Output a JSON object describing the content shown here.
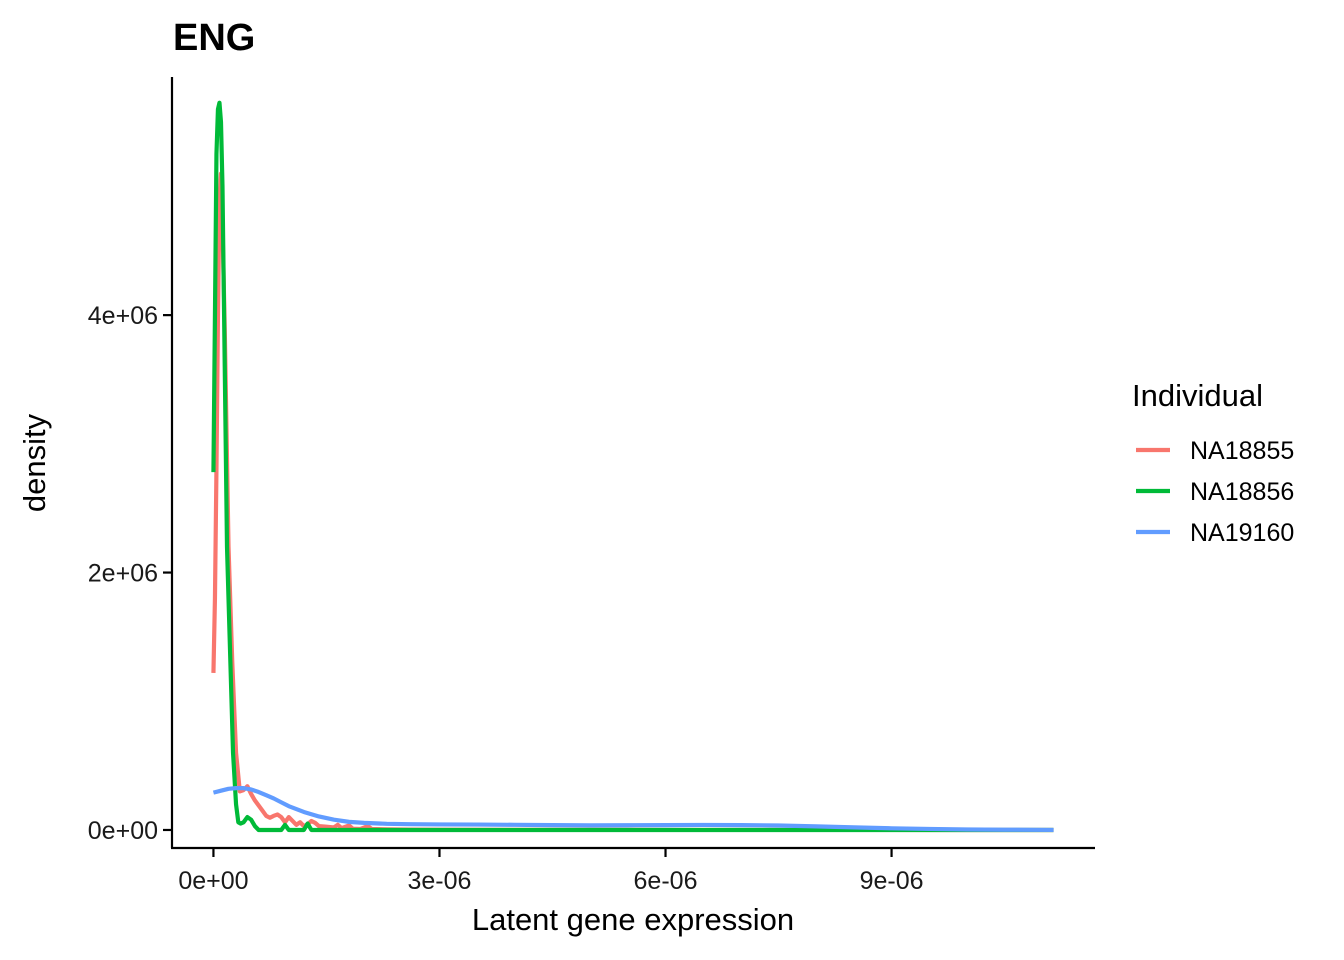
{
  "chart_data": {
    "type": "line",
    "title": "ENG",
    "xlabel": "Latent gene expression",
    "ylabel": "density",
    "xlim": [
      -5.5e-07,
      1.17e-05
    ],
    "ylim": [
      -140000.0,
      5850000.0
    ],
    "x_ticks": [
      {
        "value": 0,
        "label": "0e+00"
      },
      {
        "value": 3e-06,
        "label": "3e-06"
      },
      {
        "value": 6e-06,
        "label": "6e-06"
      },
      {
        "value": 9e-06,
        "label": "9e-06"
      }
    ],
    "y_ticks": [
      {
        "value": 0,
        "label": "0e+00"
      },
      {
        "value": 2000000,
        "label": "2e+06"
      },
      {
        "value": 4000000,
        "label": "4e+06"
      }
    ],
    "grid": false,
    "legend": {
      "title": "Individual",
      "position": "right"
    },
    "series": [
      {
        "name": "NA18855",
        "color": "#F8766D",
        "points": [
          [
            0,
            1220000
          ],
          [
            2e-08,
            1800000
          ],
          [
            4e-08,
            2800000
          ],
          [
            6e-08,
            4000000
          ],
          [
            8e-08,
            4900000
          ],
          [
            1e-07,
            5100000
          ],
          [
            1.2e-07,
            4700000
          ],
          [
            1.5e-07,
            3900000
          ],
          [
            2e-07,
            2200000
          ],
          [
            2.5e-07,
            1300000
          ],
          [
            3e-07,
            600000
          ],
          [
            3.5e-07,
            300000
          ],
          [
            4e-07,
            310000
          ],
          [
            4.5e-07,
            340000
          ],
          [
            5e-07,
            280000
          ],
          [
            5.5e-07,
            230000
          ],
          [
            6e-07,
            190000
          ],
          [
            6.5e-07,
            150000
          ],
          [
            7e-07,
            110000
          ],
          [
            7.5e-07,
            95000
          ],
          [
            8e-07,
            110000
          ],
          [
            8.5e-07,
            120000
          ],
          [
            9e-07,
            100000
          ],
          [
            9.5e-07,
            60000
          ],
          [
            1e-06,
            100000
          ],
          [
            1.05e-06,
            70000
          ],
          [
            1.1e-06,
            40000
          ],
          [
            1.15e-06,
            60000
          ],
          [
            1.2e-06,
            30000
          ],
          [
            1.25e-06,
            45000
          ],
          [
            1.3e-06,
            70000
          ],
          [
            1.35e-06,
            55000
          ],
          [
            1.4e-06,
            30000
          ],
          [
            1.5e-06,
            25000
          ],
          [
            1.6e-06,
            20000
          ],
          [
            1.65e-06,
            40000
          ],
          [
            1.7e-06,
            15000
          ],
          [
            1.8e-06,
            35000
          ],
          [
            1.85e-06,
            10000
          ],
          [
            1.95e-06,
            8000
          ],
          [
            2.05e-06,
            30000
          ],
          [
            2.1e-06,
            8000
          ],
          [
            2.3e-06,
            5000
          ],
          [
            2.6e-06,
            3000
          ],
          [
            3e-06,
            2000
          ],
          [
            4e-06,
            1000
          ],
          [
            6e-06,
            500
          ],
          [
            8e-06,
            200
          ],
          [
            1e-05,
            100
          ],
          [
            1.115e-05,
            0
          ]
        ]
      },
      {
        "name": "NA18856",
        "color": "#00BA38",
        "points": [
          [
            0,
            2780000
          ],
          [
            2e-08,
            4000000
          ],
          [
            4e-08,
            5250000
          ],
          [
            6e-08,
            5600000
          ],
          [
            8e-08,
            5650000
          ],
          [
            1e-07,
            5500000
          ],
          [
            1.2e-07,
            5000000
          ],
          [
            1.5e-07,
            3600000
          ],
          [
            1.8e-07,
            2200000
          ],
          [
            2.2e-07,
            1400000
          ],
          [
            2.6e-07,
            600000
          ],
          [
            3e-07,
            200000
          ],
          [
            3.3e-07,
            60000
          ],
          [
            3.6e-07,
            50000
          ],
          [
            4e-07,
            60000
          ],
          [
            4.5e-07,
            100000
          ],
          [
            5e-07,
            80000
          ],
          [
            5.5e-07,
            30000
          ],
          [
            6e-07,
            0
          ],
          [
            7e-07,
            0
          ],
          [
            8e-07,
            0
          ],
          [
            9e-07,
            0
          ],
          [
            9.5e-07,
            40000
          ],
          [
            1e-06,
            0
          ],
          [
            1.1e-06,
            0
          ],
          [
            1.2e-06,
            0
          ],
          [
            1.25e-06,
            50000
          ],
          [
            1.3e-06,
            0
          ],
          [
            2e-06,
            0
          ],
          [
            3e-06,
            0
          ],
          [
            5e-06,
            0
          ],
          [
            8e-06,
            0
          ],
          [
            1.115e-05,
            0
          ]
        ]
      },
      {
        "name": "NA19160",
        "color": "#619CFF",
        "points": [
          [
            0,
            290000
          ],
          [
            1e-07,
            305000
          ],
          [
            2e-07,
            320000
          ],
          [
            3e-07,
            325000
          ],
          [
            4e-07,
            325000
          ],
          [
            5e-07,
            315000
          ],
          [
            6e-07,
            295000
          ],
          [
            7e-07,
            270000
          ],
          [
            8e-07,
            245000
          ],
          [
            9e-07,
            215000
          ],
          [
            1e-06,
            185000
          ],
          [
            1.2e-06,
            140000
          ],
          [
            1.4e-06,
            105000
          ],
          [
            1.6e-06,
            80000
          ],
          [
            1.8e-06,
            63000
          ],
          [
            2e-06,
            55000
          ],
          [
            2.3e-06,
            48000
          ],
          [
            2.6e-06,
            45000
          ],
          [
            3e-06,
            43000
          ],
          [
            3.5e-06,
            42000
          ],
          [
            4e-06,
            40000
          ],
          [
            4.5e-06,
            38000
          ],
          [
            5e-06,
            36000
          ],
          [
            5.5e-06,
            37000
          ],
          [
            6e-06,
            38000
          ],
          [
            6.5e-06,
            39000
          ],
          [
            7e-06,
            38000
          ],
          [
            7.5e-06,
            35000
          ],
          [
            8e-06,
            28000
          ],
          [
            8.5e-06,
            20000
          ],
          [
            9e-06,
            13000
          ],
          [
            9.5e-06,
            8000
          ],
          [
            1e-05,
            4000
          ],
          [
            1.05e-05,
            2000
          ],
          [
            1.115e-05,
            500
          ]
        ]
      }
    ]
  }
}
